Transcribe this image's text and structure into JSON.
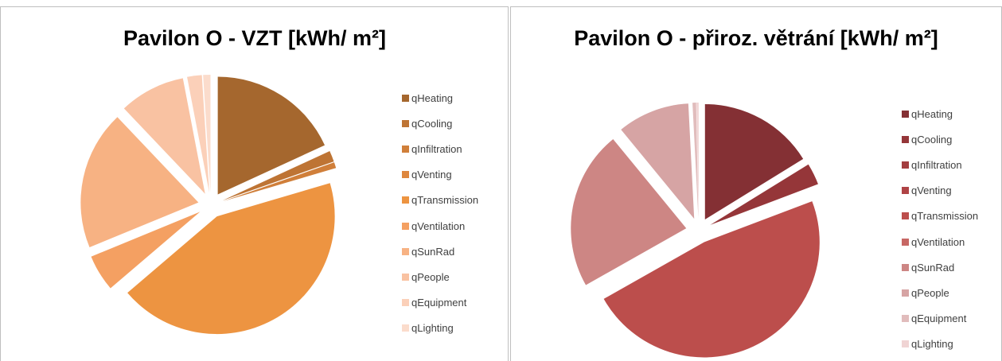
{
  "chart_data": [
    {
      "type": "pie",
      "title": "Pavilon O - VZT  [kWh/ m²]",
      "categories": [
        "qHeating",
        "qCooling",
        "qInfiltration",
        "qVenting",
        "qTransmission",
        "qVentilation",
        "qSunRad",
        "qPeople",
        "qEquipment",
        "qLighting"
      ],
      "values": [
        18,
        1.5,
        0.8,
        0,
        43,
        5,
        19,
        9,
        2,
        1
      ],
      "colors": [
        "#a5672e",
        "#be7434",
        "#d07f3a",
        "#de873e",
        "#ed9441",
        "#f4a062",
        "#f7b283",
        "#f9c2a2",
        "#fbd0b9",
        "#fbdccc"
      ]
    },
    {
      "type": "pie",
      "title": "Pavilon O - přiroz. větrání [kWh/ m²]",
      "categories": [
        "qHeating",
        "qCooling",
        "qInfiltration",
        "qVenting",
        "qTransmission",
        "qVentilation",
        "qSunRad",
        "qPeople",
        "qEquipment",
        "qLighting"
      ],
      "values": [
        16,
        3,
        0,
        0,
        47,
        0,
        22,
        10,
        0.5,
        0.3
      ],
      "colors": [
        "#843034",
        "#953639",
        "#a33d3f",
        "#af4345",
        "#bc4e4c",
        "#c76764",
        "#cd8684",
        "#d6a4a4",
        "#e1bcbc",
        "#f0d4d4"
      ]
    }
  ]
}
